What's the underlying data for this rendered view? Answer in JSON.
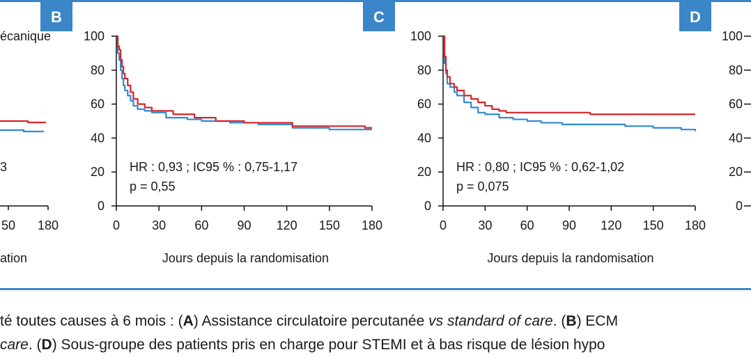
{
  "colors": {
    "frame": "#3a86c8",
    "panel_badge": "#3a86c8",
    "red_series": "#d8232a",
    "blue_series": "#2f8ad3",
    "axis": "#111111"
  },
  "panels": [
    {
      "letter": "B"
    },
    {
      "letter": "C"
    },
    {
      "letter": "D"
    }
  ],
  "partial_panel_a": {
    "label_fragment": "écanique",
    "stat_fragment": "3",
    "tick_fragments": [
      "50",
      "180"
    ],
    "xlabel_fragment": "ation"
  },
  "partial_panel_d": {
    "yticks": [
      "100",
      "80",
      "60",
      "40",
      "20",
      "0"
    ]
  },
  "chart_data": [
    {
      "panel": "B",
      "type": "line",
      "xlabel": "Jours depuis la randomisation",
      "ylabel": "",
      "xlim": [
        0,
        180
      ],
      "ylim": [
        0,
        100
      ],
      "xticks": [
        0,
        30,
        60,
        90,
        120,
        150,
        180
      ],
      "yticks": [
        0,
        20,
        40,
        60,
        80,
        100
      ],
      "grid": false,
      "annotation": [
        "HR : 0,93 ; IC95 % : 0,75-1,17",
        "p = 0,55"
      ],
      "series": [
        {
          "color": "red",
          "x": [
            0,
            1,
            2,
            3,
            4,
            5,
            6,
            8,
            10,
            12,
            15,
            20,
            25,
            40,
            55,
            70,
            90,
            124,
            150,
            175,
            180
          ],
          "y": [
            100,
            94,
            92,
            86,
            82,
            78,
            75,
            71,
            67,
            63,
            60,
            58,
            56,
            54,
            52,
            50,
            49,
            47,
            47,
            46,
            46
          ]
        },
        {
          "color": "blue",
          "x": [
            0,
            1,
            2,
            3,
            4,
            5,
            6,
            8,
            10,
            12,
            15,
            20,
            25,
            35,
            50,
            60,
            80,
            100,
            124,
            150,
            180
          ],
          "y": [
            100,
            90,
            86,
            80,
            75,
            71,
            68,
            65,
            62,
            59,
            57,
            56,
            55,
            52,
            51,
            50,
            49,
            48,
            46,
            45,
            45
          ]
        }
      ]
    },
    {
      "panel": "C",
      "type": "line",
      "xlabel": "Jours depuis la randomisation",
      "ylabel": "",
      "xlim": [
        0,
        180
      ],
      "ylim": [
        0,
        100
      ],
      "xticks": [
        0,
        30,
        60,
        90,
        120,
        150,
        180
      ],
      "yticks": [
        0,
        20,
        40,
        60,
        80,
        100
      ],
      "grid": false,
      "annotation": [
        "HR : 0,80 ; IC95 % : 0,62-1,02",
        "p = 0,075"
      ],
      "series": [
        {
          "color": "red",
          "x": [
            0,
            1,
            2,
            3,
            5,
            8,
            10,
            15,
            20,
            25,
            30,
            35,
            40,
            45,
            60,
            80,
            105,
            130,
            150,
            180
          ],
          "y": [
            100,
            88,
            80,
            76,
            72,
            70,
            68,
            65,
            63,
            61,
            59,
            57,
            56,
            55,
            55,
            55,
            54,
            54,
            54,
            54
          ]
        },
        {
          "color": "blue",
          "x": [
            0,
            1,
            2,
            3,
            5,
            8,
            10,
            15,
            20,
            25,
            30,
            40,
            50,
            60,
            70,
            85,
            110,
            130,
            150,
            170,
            180
          ],
          "y": [
            100,
            84,
            78,
            72,
            70,
            67,
            65,
            61,
            58,
            55,
            54,
            52,
            51,
            50,
            49,
            48,
            48,
            47,
            46,
            45,
            44
          ]
        }
      ]
    }
  ],
  "caption": {
    "line1": [
      {
        "t": "té toutes causes à 6 mois : (",
        "s": "n"
      },
      {
        "t": "A",
        "s": "b"
      },
      {
        "t": ") Assistance circulatoire percutanée ",
        "s": "n"
      },
      {
        "t": "vs standard of care",
        "s": "i"
      },
      {
        "t": ". (",
        "s": "n"
      },
      {
        "t": "B",
        "s": "b"
      },
      {
        "t": ") ECM",
        "s": "n"
      }
    ],
    "line2": [
      {
        "t": "care",
        "s": "i"
      },
      {
        "t": ". (",
        "s": "n"
      },
      {
        "t": "D",
        "s": "b"
      },
      {
        "t": ") Sous-groupe des patients pris en charge pour STEMI et à bas risque de lésion hypo",
        "s": "n"
      }
    ]
  }
}
